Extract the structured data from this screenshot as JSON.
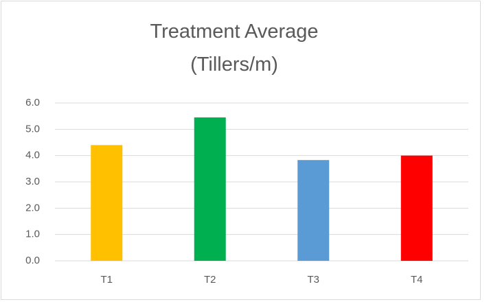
{
  "chart_data": {
    "type": "bar",
    "title": "Treatment Average (Tillers/m)",
    "categories": [
      "T1",
      "T2",
      "T3",
      "T4"
    ],
    "values": [
      4.4,
      5.45,
      3.83,
      4.0
    ],
    "colors": [
      "#ffc000",
      "#00b050",
      "#5b9bd5",
      "#ff0000"
    ],
    "ylim": [
      0,
      6
    ],
    "yticks": [
      {
        "value": 0,
        "label": "0.0"
      },
      {
        "value": 1,
        "label": "1.0"
      },
      {
        "value": 2,
        "label": "2.0"
      },
      {
        "value": 3,
        "label": "3.0"
      },
      {
        "value": 4,
        "label": "4.0"
      },
      {
        "value": 5,
        "label": "5.0"
      },
      {
        "value": 6,
        "label": "6.0"
      }
    ],
    "grid": true
  }
}
